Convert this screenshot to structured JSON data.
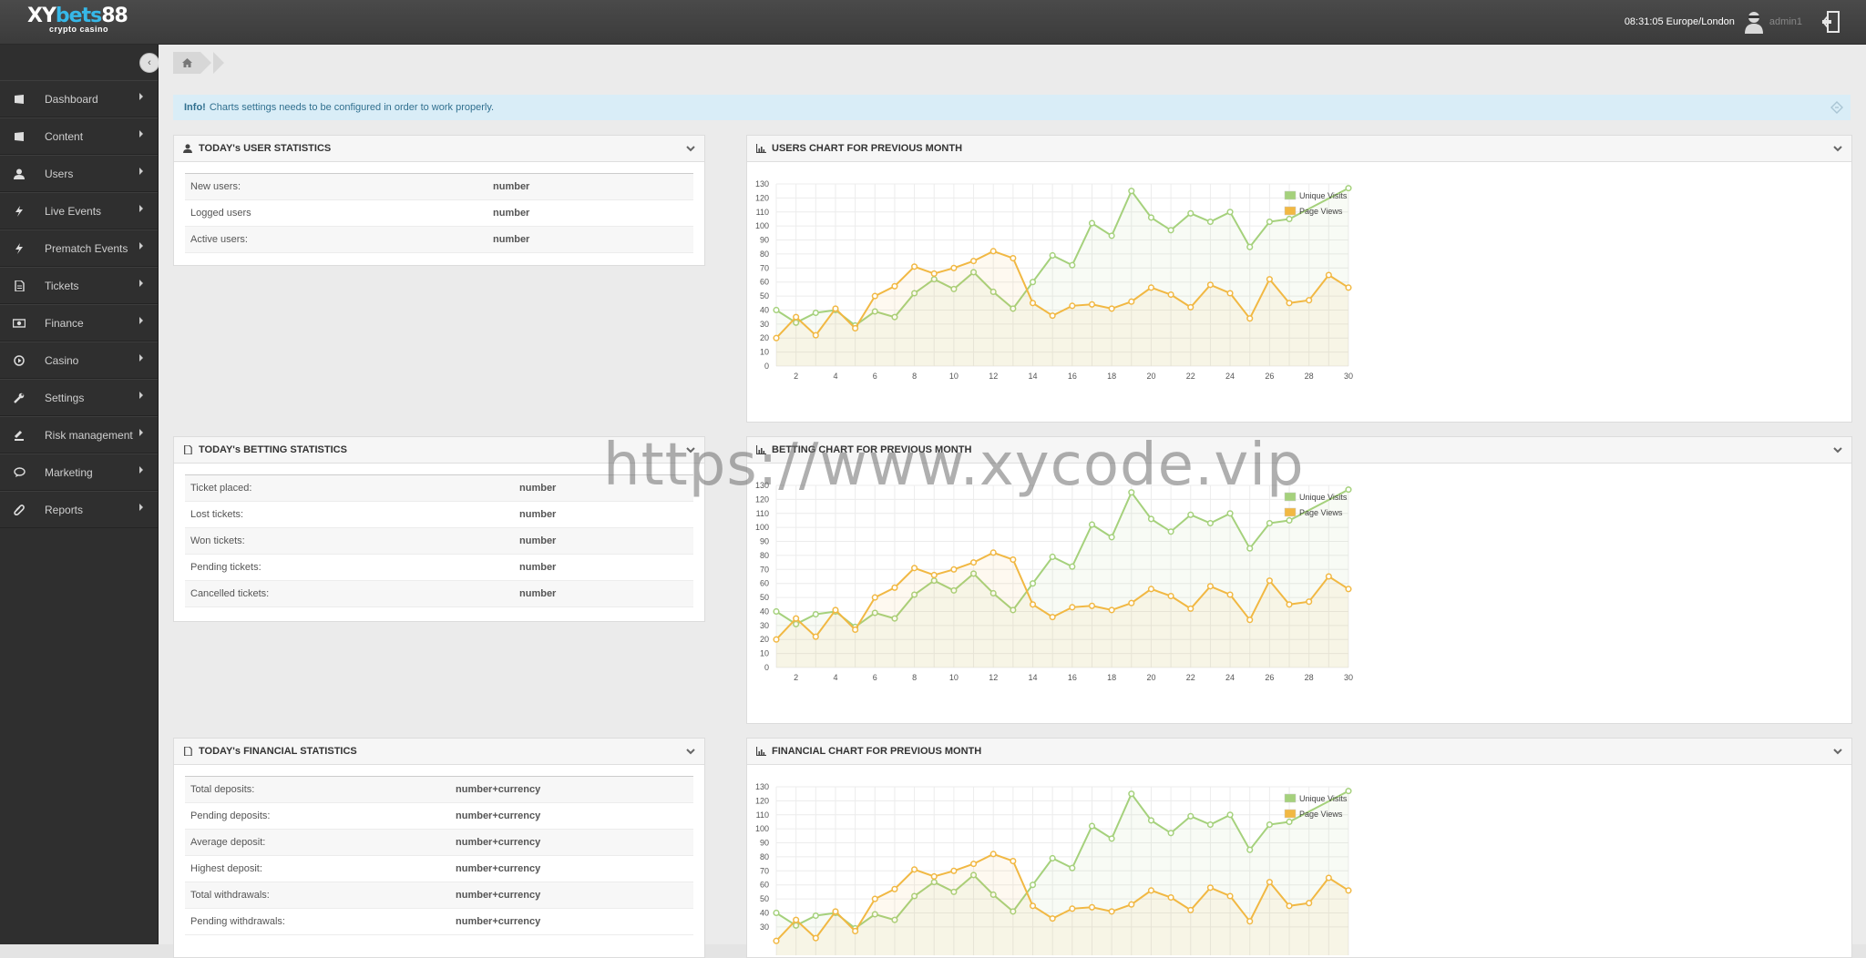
{
  "brand": {
    "logo_main": "XYbets88",
    "logo_sub": "crypto casino"
  },
  "header": {
    "clock": "08:31:05 Europe/London",
    "username": "admin1"
  },
  "sidebar": {
    "items": [
      {
        "label": "Dashboard",
        "icon": "dashboard-icon"
      },
      {
        "label": "Content",
        "icon": "book-icon"
      },
      {
        "label": "Users",
        "icon": "user-icon"
      },
      {
        "label": "Live Events",
        "icon": "bolt-icon"
      },
      {
        "label": "Prematch Events",
        "icon": "bolt-icon"
      },
      {
        "label": "Tickets",
        "icon": "file-icon"
      },
      {
        "label": "Finance",
        "icon": "money-icon"
      },
      {
        "label": "Casino",
        "icon": "play-icon"
      },
      {
        "label": "Settings",
        "icon": "wrench-icon"
      },
      {
        "label": "Risk management",
        "icon": "gavel-icon"
      },
      {
        "label": "Marketing",
        "icon": "comment-icon"
      },
      {
        "label": "Reports",
        "icon": "paperclip-icon"
      }
    ]
  },
  "alert": {
    "title": "Info!",
    "text": "Charts settings needs to be configured in order to work properly."
  },
  "user_stats": {
    "title": "TODAY's USER STATISTICS",
    "rows": [
      {
        "label": "New users:",
        "value": "number"
      },
      {
        "label": "Logged users",
        "value": "number"
      },
      {
        "label": "Active users:",
        "value": "number"
      }
    ]
  },
  "betting_stats": {
    "title": "TODAY's BETTING STATISTICS",
    "rows": [
      {
        "label": "Ticket placed:",
        "value": "number"
      },
      {
        "label": "Lost tickets:",
        "value": "number"
      },
      {
        "label": "Won tickets:",
        "value": "number"
      },
      {
        "label": "Pending tickets:",
        "value": "number"
      },
      {
        "label": "Cancelled tickets:",
        "value": "number"
      }
    ]
  },
  "financial_stats": {
    "title": "TODAY's FINANCIAL STATISTICS",
    "rows": [
      {
        "label": "Total deposits:",
        "value": "number+currency"
      },
      {
        "label": "Pending deposits:",
        "value": "number+currency"
      },
      {
        "label": "Average deposit:",
        "value": "number+currency"
      },
      {
        "label": "Highest deposit:",
        "value": "number+currency"
      },
      {
        "label": "Total withdrawals:",
        "value": "number+currency"
      },
      {
        "label": "Pending withdrawals:",
        "value": "number+currency"
      }
    ]
  },
  "charts": {
    "users_title": "USERS CHART FOR PREVIOUS MONTH",
    "betting_title": "BETTING CHART FOR PREVIOUS MONTH",
    "financial_title": "FINANCIAL CHART FOR PREVIOUS MONTH"
  },
  "watermark": "https://www.xycode.vip",
  "chart_data": [
    {
      "type": "line",
      "title": "USERS CHART FOR PREVIOUS MONTH",
      "x": [
        1,
        2,
        3,
        4,
        5,
        6,
        7,
        8,
        9,
        10,
        11,
        12,
        13,
        14,
        15,
        16,
        17,
        18,
        19,
        20,
        21,
        22,
        23,
        24,
        25,
        26,
        27,
        28,
        29,
        30
      ],
      "xticks": [
        2,
        4,
        6,
        8,
        10,
        12,
        14,
        16,
        18,
        20,
        22,
        24,
        26,
        28,
        30
      ],
      "ylim": [
        0,
        130
      ],
      "yticks": [
        0,
        10,
        20,
        30,
        40,
        50,
        60,
        70,
        80,
        90,
        100,
        110,
        120,
        130
      ],
      "grid": true,
      "legend": "top-right",
      "series": [
        {
          "name": "Unique Visits",
          "color": "#a5d17c",
          "values": [
            40,
            31,
            38,
            40,
            29,
            39,
            35,
            52,
            62,
            55,
            67,
            53,
            41,
            60,
            79,
            72,
            102,
            93,
            125,
            106,
            97,
            109,
            103,
            110,
            85,
            103,
            105,
            null,
            null,
            127
          ]
        },
        {
          "name": "Page Views",
          "color": "#f1b843",
          "values": [
            20,
            35,
            22,
            41,
            27,
            50,
            57,
            71,
            66,
            70,
            75,
            82,
            77,
            45,
            36,
            43,
            44,
            41,
            46,
            56,
            51,
            42,
            58,
            52,
            34,
            62,
            45,
            47,
            65,
            56
          ]
        }
      ]
    },
    {
      "type": "line",
      "title": "BETTING CHART FOR PREVIOUS MONTH",
      "x": [
        1,
        2,
        3,
        4,
        5,
        6,
        7,
        8,
        9,
        10,
        11,
        12,
        13,
        14,
        15,
        16,
        17,
        18,
        19,
        20,
        21,
        22,
        23,
        24,
        25,
        26,
        27,
        28,
        29,
        30
      ],
      "xticks": [
        2,
        4,
        6,
        8,
        10,
        12,
        14,
        16,
        18,
        20,
        22,
        24,
        26,
        28,
        30
      ],
      "ylim": [
        0,
        130
      ],
      "yticks": [
        0,
        10,
        20,
        30,
        40,
        50,
        60,
        70,
        80,
        90,
        100,
        110,
        120,
        130
      ],
      "grid": true,
      "legend": "top-right",
      "series": [
        {
          "name": "Unique Visits",
          "color": "#a5d17c",
          "values": [
            40,
            31,
            38,
            40,
            29,
            39,
            35,
            52,
            62,
            55,
            67,
            53,
            41,
            60,
            79,
            72,
            102,
            93,
            125,
            106,
            97,
            109,
            103,
            110,
            85,
            103,
            105,
            null,
            null,
            127
          ]
        },
        {
          "name": "Page Views",
          "color": "#f1b843",
          "values": [
            20,
            35,
            22,
            41,
            27,
            50,
            57,
            71,
            66,
            70,
            75,
            82,
            77,
            45,
            36,
            43,
            44,
            41,
            46,
            56,
            51,
            42,
            58,
            52,
            34,
            62,
            45,
            47,
            65,
            56
          ]
        }
      ]
    },
    {
      "type": "line",
      "title": "FINANCIAL CHART FOR PREVIOUS MONTH",
      "x": [
        1,
        2,
        3,
        4,
        5,
        6,
        7,
        8,
        9,
        10,
        11,
        12,
        13,
        14,
        15,
        16,
        17,
        18,
        19,
        20,
        21,
        22,
        23,
        24,
        25,
        26,
        27,
        28,
        29,
        30
      ],
      "ylim": [
        0,
        130
      ],
      "yticks": [
        30,
        40,
        50,
        60,
        70,
        80,
        90,
        100,
        110,
        120,
        130
      ],
      "grid": true,
      "legend": "top-right",
      "series": [
        {
          "name": "Unique Visits",
          "color": "#a5d17c",
          "values": [
            40,
            31,
            38,
            40,
            29,
            39,
            35,
            52,
            62,
            55,
            67,
            53,
            41,
            60,
            79,
            72,
            102,
            93,
            125,
            106,
            97,
            109,
            103,
            110,
            85,
            103,
            105,
            null,
            null,
            127
          ]
        },
        {
          "name": "Page Views",
          "color": "#f1b843",
          "values": [
            20,
            35,
            22,
            41,
            27,
            50,
            57,
            71,
            66,
            70,
            75,
            82,
            77,
            45,
            36,
            43,
            44,
            41,
            46,
            56,
            51,
            42,
            58,
            52,
            34,
            62,
            45,
            47,
            65,
            56
          ]
        }
      ]
    }
  ]
}
